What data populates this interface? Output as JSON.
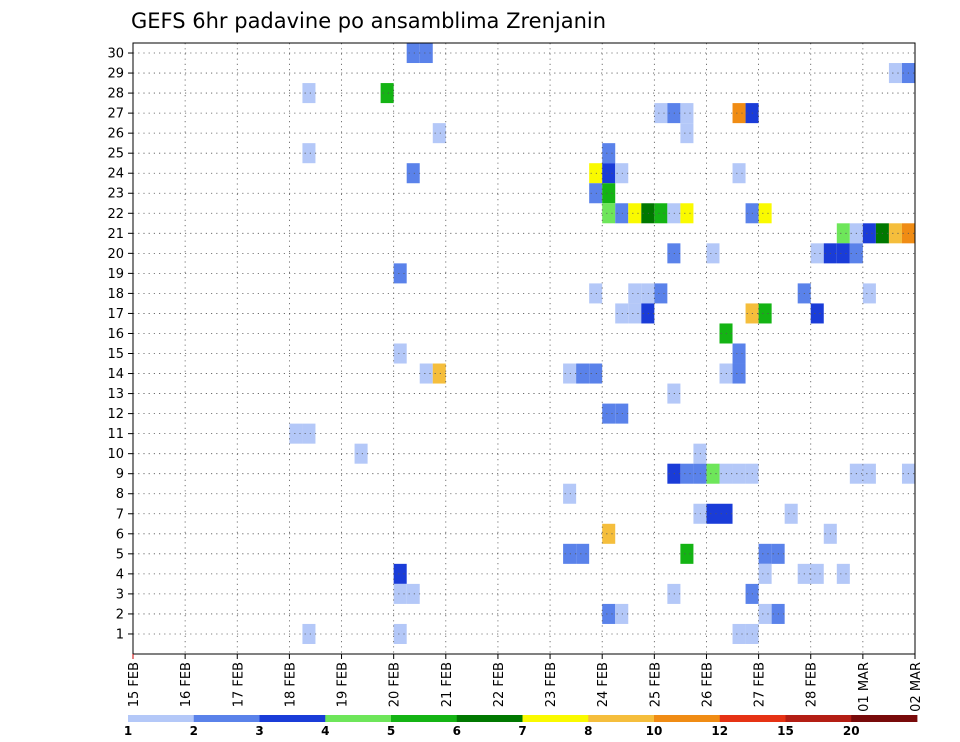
{
  "chart_data": {
    "type": "heatmap",
    "title": "GEFS 6hr padavine po ansamblima Zrenjanin",
    "xlabel": "",
    "ylabel": "",
    "x_ticks": [
      "15 FEB",
      "16 FEB",
      "17 FEB",
      "18 FEB",
      "19 FEB",
      "20 FEB",
      "21 FEB",
      "22 FEB",
      "23 FEB",
      "24 FEB",
      "25 FEB",
      "26 FEB",
      "27 FEB",
      "28 FEB",
      "01 MAR",
      "02 MAR"
    ],
    "y_ticks": [
      "1",
      "2",
      "3",
      "4",
      "5",
      "6",
      "7",
      "8",
      "9",
      "10",
      "11",
      "12",
      "13",
      "14",
      "15",
      "16",
      "17",
      "18",
      "19",
      "20",
      "21",
      "22",
      "23",
      "24",
      "25",
      "26",
      "27",
      "28",
      "29",
      "30"
    ],
    "x_range_steps": 60,
    "steps_per_day": 4,
    "grid": true,
    "colorbar": {
      "labels": [
        "1",
        "2",
        "3",
        "4",
        "5",
        "6",
        "7",
        "8",
        "10",
        "12",
        "15",
        "20"
      ],
      "colors": [
        "#b4c8f8",
        "#5a82ea",
        "#1a3cd8",
        "#6ee65a",
        "#14b414",
        "#007800",
        "#fafa00",
        "#f5be3c",
        "#f08c14",
        "#e63214",
        "#b41e14",
        "#780a0a"
      ]
    },
    "cells": [
      {
        "member": 30,
        "step": 21,
        "c": 1
      },
      {
        "member": 30,
        "step": 22,
        "c": 1
      },
      {
        "member": 29,
        "step": 58,
        "c": 0
      },
      {
        "member": 29,
        "step": 59,
        "c": 1
      },
      {
        "member": 28,
        "step": 13,
        "c": 0
      },
      {
        "member": 28,
        "step": 19,
        "c": 4
      },
      {
        "member": 27,
        "step": 40,
        "c": 0
      },
      {
        "member": 27,
        "step": 41,
        "c": 1
      },
      {
        "member": 27,
        "step": 42,
        "c": 0
      },
      {
        "member": 27,
        "step": 46,
        "c": 8
      },
      {
        "member": 27,
        "step": 47,
        "c": 2
      },
      {
        "member": 26,
        "step": 23,
        "c": 0
      },
      {
        "member": 26,
        "step": 42,
        "c": 0
      },
      {
        "member": 25,
        "step": 13,
        "c": 0
      },
      {
        "member": 25,
        "step": 36,
        "c": 1
      },
      {
        "member": 24,
        "step": 21,
        "c": 1
      },
      {
        "member": 24,
        "step": 35,
        "c": 6
      },
      {
        "member": 24,
        "step": 36,
        "c": 2
      },
      {
        "member": 24,
        "step": 37,
        "c": 0
      },
      {
        "member": 24,
        "step": 46,
        "c": 0
      },
      {
        "member": 23,
        "step": 35,
        "c": 1
      },
      {
        "member": 23,
        "step": 36,
        "c": 4
      },
      {
        "member": 22,
        "step": 36,
        "c": 3
      },
      {
        "member": 22,
        "step": 37,
        "c": 1
      },
      {
        "member": 22,
        "step": 38,
        "c": 6
      },
      {
        "member": 22,
        "step": 39,
        "c": 5
      },
      {
        "member": 22,
        "step": 40,
        "c": 4
      },
      {
        "member": 22,
        "step": 41,
        "c": 0
      },
      {
        "member": 22,
        "step": 42,
        "c": 6
      },
      {
        "member": 22,
        "step": 47,
        "c": 1
      },
      {
        "member": 22,
        "step": 48,
        "c": 6
      },
      {
        "member": 21,
        "step": 54,
        "c": 3
      },
      {
        "member": 21,
        "step": 55,
        "c": 0
      },
      {
        "member": 21,
        "step": 56,
        "c": 2
      },
      {
        "member": 21,
        "step": 57,
        "c": 5
      },
      {
        "member": 21,
        "step": 58,
        "c": 7
      },
      {
        "member": 21,
        "step": 59,
        "c": 8
      },
      {
        "member": 20,
        "step": 41,
        "c": 1
      },
      {
        "member": 20,
        "step": 44,
        "c": 0
      },
      {
        "member": 20,
        "step": 52,
        "c": 0
      },
      {
        "member": 20,
        "step": 53,
        "c": 2
      },
      {
        "member": 20,
        "step": 54,
        "c": 2
      },
      {
        "member": 20,
        "step": 55,
        "c": 1
      },
      {
        "member": 19,
        "step": 20,
        "c": 1
      },
      {
        "member": 18,
        "step": 35,
        "c": 0
      },
      {
        "member": 18,
        "step": 38,
        "c": 0
      },
      {
        "member": 18,
        "step": 39,
        "c": 0
      },
      {
        "member": 18,
        "step": 40,
        "c": 1
      },
      {
        "member": 18,
        "step": 51,
        "c": 1
      },
      {
        "member": 18,
        "step": 56,
        "c": 0
      },
      {
        "member": 17,
        "step": 37,
        "c": 0
      },
      {
        "member": 17,
        "step": 38,
        "c": 0
      },
      {
        "member": 17,
        "step": 39,
        "c": 2
      },
      {
        "member": 17,
        "step": 47,
        "c": 7
      },
      {
        "member": 17,
        "step": 48,
        "c": 4
      },
      {
        "member": 17,
        "step": 52,
        "c": 2
      },
      {
        "member": 16,
        "step": 45,
        "c": 4
      },
      {
        "member": 15,
        "step": 20,
        "c": 0
      },
      {
        "member": 15,
        "step": 46,
        "c": 1
      },
      {
        "member": 14,
        "step": 22,
        "c": 0
      },
      {
        "member": 14,
        "step": 23,
        "c": 7
      },
      {
        "member": 14,
        "step": 33,
        "c": 0
      },
      {
        "member": 14,
        "step": 34,
        "c": 1
      },
      {
        "member": 14,
        "step": 35,
        "c": 1
      },
      {
        "member": 14,
        "step": 45,
        "c": 0
      },
      {
        "member": 14,
        "step": 46,
        "c": 1
      },
      {
        "member": 13,
        "step": 41,
        "c": 0
      },
      {
        "member": 12,
        "step": 36,
        "c": 1
      },
      {
        "member": 12,
        "step": 37,
        "c": 1
      },
      {
        "member": 11,
        "step": 12,
        "c": 0
      },
      {
        "member": 11,
        "step": 13,
        "c": 0
      },
      {
        "member": 10,
        "step": 17,
        "c": 0
      },
      {
        "member": 10,
        "step": 43,
        "c": 0
      },
      {
        "member": 9,
        "step": 41,
        "c": 2
      },
      {
        "member": 9,
        "step": 42,
        "c": 1
      },
      {
        "member": 9,
        "step": 43,
        "c": 1
      },
      {
        "member": 9,
        "step": 44,
        "c": 3
      },
      {
        "member": 9,
        "step": 45,
        "c": 0
      },
      {
        "member": 9,
        "step": 46,
        "c": 0
      },
      {
        "member": 9,
        "step": 47,
        "c": 0
      },
      {
        "member": 9,
        "step": 55,
        "c": 0
      },
      {
        "member": 9,
        "step": 56,
        "c": 0
      },
      {
        "member": 9,
        "step": 59,
        "c": 0
      },
      {
        "member": 8,
        "step": 33,
        "c": 0
      },
      {
        "member": 7,
        "step": 43,
        "c": 0
      },
      {
        "member": 7,
        "step": 44,
        "c": 2
      },
      {
        "member": 7,
        "step": 45,
        "c": 2
      },
      {
        "member": 7,
        "step": 50,
        "c": 0
      },
      {
        "member": 6,
        "step": 36,
        "c": 7
      },
      {
        "member": 6,
        "step": 53,
        "c": 0
      },
      {
        "member": 5,
        "step": 33,
        "c": 1
      },
      {
        "member": 5,
        "step": 34,
        "c": 1
      },
      {
        "member": 5,
        "step": 42,
        "c": 4
      },
      {
        "member": 5,
        "step": 48,
        "c": 1
      },
      {
        "member": 5,
        "step": 49,
        "c": 1
      },
      {
        "member": 4,
        "step": 20,
        "c": 2
      },
      {
        "member": 4,
        "step": 48,
        "c": 0
      },
      {
        "member": 4,
        "step": 51,
        "c": 0
      },
      {
        "member": 4,
        "step": 52,
        "c": 0
      },
      {
        "member": 4,
        "step": 54,
        "c": 0
      },
      {
        "member": 3,
        "step": 20,
        "c": 0
      },
      {
        "member": 3,
        "step": 21,
        "c": 0
      },
      {
        "member": 3,
        "step": 41,
        "c": 0
      },
      {
        "member": 3,
        "step": 47,
        "c": 1
      },
      {
        "member": 2,
        "step": 36,
        "c": 1
      },
      {
        "member": 2,
        "step": 37,
        "c": 0
      },
      {
        "member": 2,
        "step": 48,
        "c": 0
      },
      {
        "member": 2,
        "step": 49,
        "c": 1
      },
      {
        "member": 1,
        "step": 13,
        "c": 0
      },
      {
        "member": 1,
        "step": 20,
        "c": 0
      },
      {
        "member": 1,
        "step": 46,
        "c": 0
      },
      {
        "member": 1,
        "step": 47,
        "c": 0
      }
    ]
  }
}
